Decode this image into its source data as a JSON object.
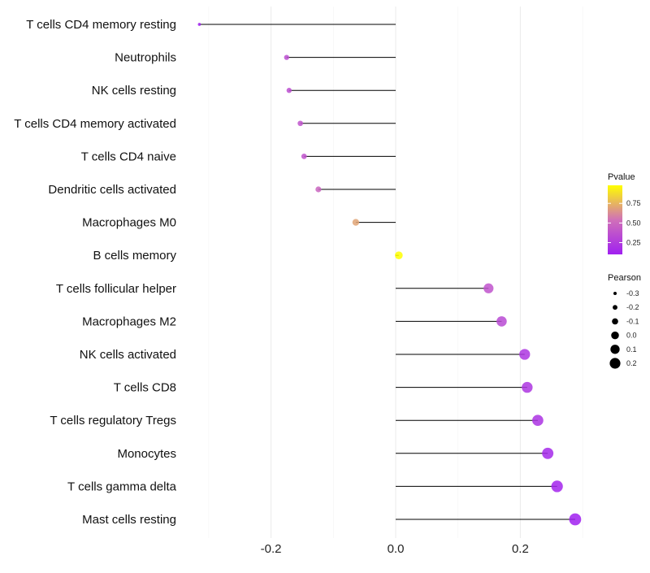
{
  "chart_data": {
    "type": "lollipop",
    "title": "",
    "xlabel": "",
    "ylabel": "",
    "xlim": [
      -0.33,
      0.31
    ],
    "xticks": [
      -0.2,
      0.0,
      0.2
    ],
    "xtick_labels": [
      "-0.2",
      "0.0",
      "0.2"
    ],
    "grid": true,
    "categories": [
      "T cells CD4 memory resting",
      "Neutrophils",
      "NK cells resting",
      "T cells CD4 memory activated",
      "T cells CD4 naive",
      "Dendritic cells activated",
      "Macrophages M0",
      "B cells memory",
      "T cells follicular helper",
      "Macrophages M2",
      "NK cells activated",
      "T cells CD8",
      "T cells regulatory  Tregs ",
      "Monocytes",
      "T cells gamma delta",
      "Mast cells resting"
    ],
    "values": [
      -0.315,
      -0.175,
      -0.171,
      -0.153,
      -0.147,
      -0.124,
      -0.064,
      0.005,
      0.149,
      0.17,
      0.207,
      0.211,
      0.228,
      0.244,
      0.259,
      0.288
    ],
    "pvalues": [
      0.05,
      0.35,
      0.35,
      0.38,
      0.38,
      0.48,
      0.7,
      0.98,
      0.38,
      0.33,
      0.22,
      0.22,
      0.2,
      0.15,
      0.13,
      0.08
    ],
    "legend_color": {
      "title": "Pvalue",
      "ticks": [
        0.75,
        0.5,
        0.25
      ],
      "tick_labels": [
        "0.75",
        "0.50",
        "0.25"
      ],
      "range": [
        0.1,
        0.98
      ],
      "low_color": "#A020F0",
      "mid_color": "#D070B8",
      "high_color": "#FFFF00"
    },
    "legend_size": {
      "title": "Pearson",
      "values": [
        -0.3,
        -0.2,
        -0.1,
        0.0,
        0.1,
        0.2
      ],
      "labels": [
        "-0.3",
        "-0.2",
        "-0.1",
        "0.0",
        "0.1",
        "0.2"
      ]
    },
    "legend_placement": "right"
  }
}
